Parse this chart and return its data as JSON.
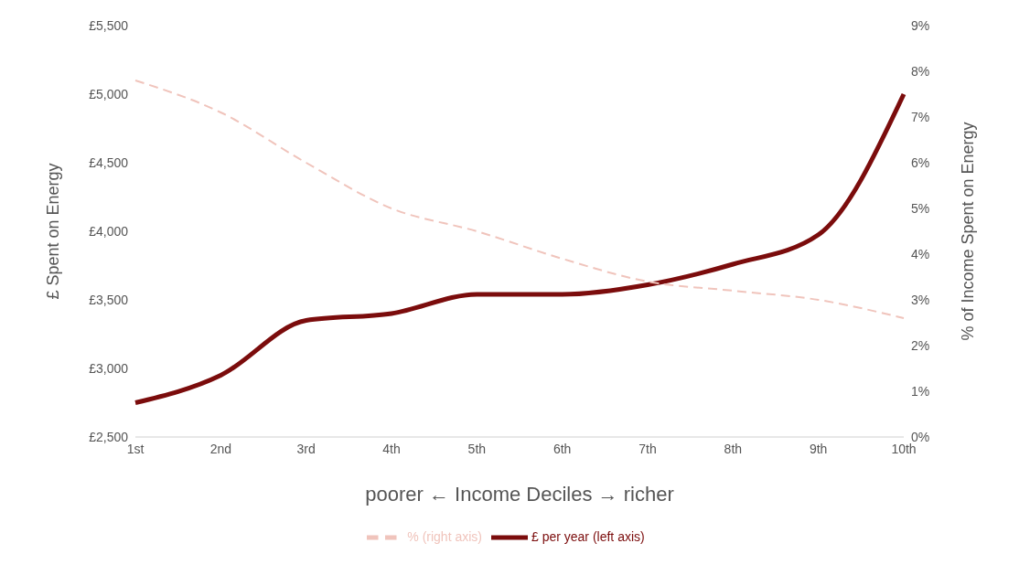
{
  "chart_data": {
    "type": "line",
    "xlabel": "poorer ←   Income Deciles   →   richer",
    "ylabel": "£ Spent on Energy",
    "y2label": "% of Income Spent on Energy",
    "categories": [
      "1st",
      "2nd",
      "3rd",
      "4th",
      "5th",
      "6th",
      "7th",
      "8th",
      "9th",
      "10th"
    ],
    "series": [
      {
        "name": "£ per year (left axis)",
        "color": "#7b0c0c",
        "values": [
          2750,
          2950,
          3350,
          3400,
          3540,
          3540,
          3610,
          3760,
          3975,
          5000
        ],
        "line_style": "solid"
      },
      {
        "name": "% (right axis)",
        "color": "#f0c4bc",
        "values": [
          7.8,
          7.1,
          6.0,
          5.0,
          4.5,
          3.9,
          3.4,
          3.2,
          3.0,
          2.6
        ],
        "axis": "y2",
        "line_style": "dashed"
      }
    ],
    "ylim": [
      2500,
      5500
    ],
    "yticks": [
      {
        "value": 2500,
        "label": "£2,500"
      },
      {
        "value": 3000,
        "label": "£3,000"
      },
      {
        "value": 3500,
        "label": "£3,500"
      },
      {
        "value": 4000,
        "label": "£4,000"
      },
      {
        "value": 4500,
        "label": "£4,500"
      },
      {
        "value": 5000,
        "label": "£5,000"
      },
      {
        "value": 5500,
        "label": "£5,500"
      }
    ],
    "y2lim": [
      0,
      9
    ],
    "y2ticks": [
      {
        "value": 0,
        "label": "0%"
      },
      {
        "value": 1,
        "label": "1%"
      },
      {
        "value": 2,
        "label": "2%"
      },
      {
        "value": 3,
        "label": "3%"
      },
      {
        "value": 4,
        "label": "4%"
      },
      {
        "value": 5,
        "label": "5%"
      },
      {
        "value": 6,
        "label": "6%"
      },
      {
        "value": 7,
        "label": "7%"
      },
      {
        "value": 8,
        "label": "8%"
      },
      {
        "value": 9,
        "label": "9%"
      }
    ],
    "grid": false,
    "legend": "bottom",
    "marker": "none"
  }
}
